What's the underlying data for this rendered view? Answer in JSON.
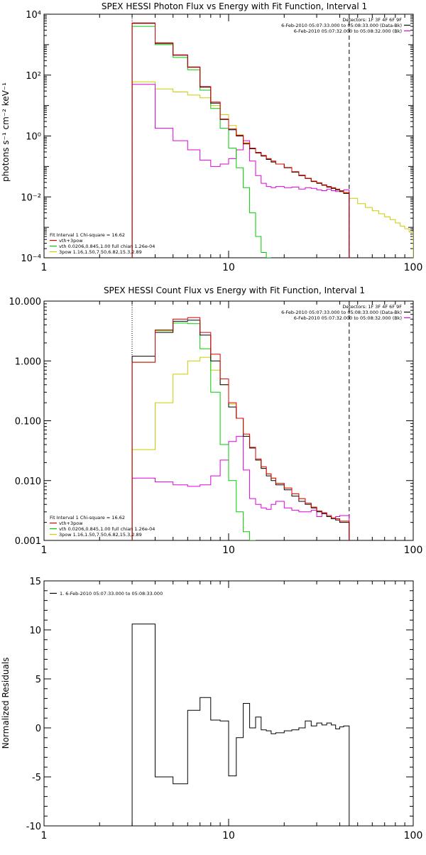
{
  "chart_data": [
    {
      "type": "line",
      "title": "SPEX HESSI Photon Flux vs Energy with Fit Function, Interval 1",
      "ylabel": "photons s⁻¹ cm⁻² keV⁻¹",
      "xlabel": "",
      "xscale": "log",
      "yscale": "log",
      "xlim": [
        1,
        100
      ],
      "ylim": [
        0.0001,
        10000
      ],
      "xticks": [
        {
          "v": 1,
          "label": "1"
        },
        {
          "v": 10,
          "label": "10"
        },
        {
          "v": 100,
          "label": "100"
        }
      ],
      "yticks": [
        {
          "v": 0.0001,
          "label": "10⁻⁴"
        },
        {
          "v": 0.01,
          "label": "10⁻²"
        },
        {
          "v": 1,
          "label": "10⁰"
        },
        {
          "v": 100,
          "label": "10²"
        },
        {
          "v": 10000,
          "label": "10⁴"
        }
      ],
      "vlines": [
        {
          "x": 3,
          "style": "dotted"
        },
        {
          "x": 45,
          "style": "dashed"
        }
      ],
      "legend_top_right": [
        {
          "text": "Detectors: 1F 3F 4F 6F 9F",
          "color": ""
        },
        {
          "text": "6-Feb-2010 05:07:33.000 to 05:08:33.000 (Data-Bk)",
          "color": "#000000"
        },
        {
          "text": "6-Feb-2010 05:07:32.000 to 05:08:32.000 (Bk)",
          "color": "#dd00dd"
        }
      ],
      "legend_bottom_left": [
        {
          "text": "Fit Interval  1    Chi-square = 16.62",
          "color": ""
        },
        {
          "text": "vth+3pow",
          "color": "#dd0000"
        },
        {
          "text": "vth 0.0206,0.845,1.00   full chian 1.26e-04",
          "color": "#00cc00"
        },
        {
          "text": "3pow 1.16,1.50,7.50,6.82,15.3,2.89",
          "color": "#cccc00"
        }
      ],
      "series": [
        {
          "color": "#000000",
          "edges": [
            3,
            4,
            5,
            6,
            7,
            8,
            9,
            10,
            11,
            12,
            13,
            14,
            15,
            16,
            17,
            18,
            20,
            22,
            24,
            26,
            28,
            30,
            32,
            34,
            36,
            38,
            40,
            42,
            45
          ],
          "values": [
            5000,
            1100,
            450,
            180,
            40,
            12,
            3.5,
            1.6,
            1.0,
            0.55,
            0.38,
            0.28,
            0.22,
            0.17,
            0.14,
            0.12,
            0.09,
            0.065,
            0.05,
            0.04,
            0.032,
            0.028,
            0.024,
            0.021,
            0.019,
            0.017,
            0.015,
            0.013
          ]
        },
        {
          "color": "#dd0000",
          "edges": [
            3,
            4,
            5,
            6,
            7,
            8,
            9,
            10,
            11,
            12,
            13,
            14,
            15,
            16,
            17,
            18,
            20,
            22,
            24,
            26,
            28,
            30,
            32,
            34,
            36,
            38,
            40,
            42,
            45
          ],
          "values": [
            5200,
            1150,
            460,
            185,
            42,
            13,
            3.6,
            1.7,
            1.05,
            0.57,
            0.4,
            0.29,
            0.23,
            0.18,
            0.15,
            0.12,
            0.092,
            0.067,
            0.052,
            0.041,
            0.033,
            0.029,
            0.025,
            0.022,
            0.02,
            0.018,
            0.016,
            0.014
          ]
        },
        {
          "color": "#00cc00",
          "edges": [
            3,
            4,
            5,
            6,
            7,
            8,
            9,
            10,
            11,
            12,
            13,
            14,
            15,
            16,
            17
          ],
          "values": [
            4000,
            1000,
            380,
            150,
            32,
            8,
            1.8,
            0.4,
            0.09,
            0.02,
            0.003,
            0.0005,
            0.00015,
            6e-05
          ]
        },
        {
          "color": "#cccc00",
          "edges": [
            3,
            4,
            5,
            6,
            7,
            8,
            9,
            10,
            11,
            12,
            13,
            14,
            15,
            16,
            17,
            18,
            20,
            22,
            24,
            26,
            28,
            30,
            32,
            34,
            36,
            38,
            40,
            42,
            45,
            50,
            55,
            60,
            65,
            70,
            75,
            80,
            85,
            90,
            95,
            100
          ],
          "values": [
            60,
            35,
            28,
            22,
            18,
            10,
            5,
            2.2,
            1.1,
            0.6,
            0.38,
            0.28,
            0.22,
            0.17,
            0.14,
            0.12,
            0.09,
            0.065,
            0.05,
            0.04,
            0.032,
            0.028,
            0.024,
            0.021,
            0.019,
            0.017,
            0.015,
            0.013,
            0.009,
            0.006,
            0.0045,
            0.0035,
            0.0028,
            0.0022,
            0.0018,
            0.0014,
            0.0011,
            0.0009,
            0.0007
          ]
        },
        {
          "color": "#dd00dd",
          "edges": [
            3,
            4,
            5,
            6,
            7,
            8,
            9,
            10,
            11,
            12,
            13,
            14,
            15,
            16,
            17,
            18,
            20,
            22,
            24,
            26,
            28,
            30,
            32,
            34,
            36,
            38,
            40,
            42,
            45
          ],
          "values": [
            50,
            1.8,
            0.7,
            0.35,
            0.16,
            0.1,
            0.12,
            0.18,
            0.35,
            0.7,
            0.15,
            0.05,
            0.028,
            0.022,
            0.02,
            0.022,
            0.02,
            0.021,
            0.018,
            0.02,
            0.019,
            0.017,
            0.016,
            0.018,
            0.016,
            0.015,
            0.016,
            0.017
          ]
        }
      ]
    },
    {
      "type": "line",
      "title": "SPEX HESSI Count Flux vs Energy with Fit Function, Interval 1",
      "ylabel": "",
      "xlabel": "",
      "xscale": "log",
      "yscale": "log",
      "xlim": [
        1,
        100
      ],
      "ylim": [
        0.001,
        10
      ],
      "xticks": [
        {
          "v": 1,
          "label": "1"
        },
        {
          "v": 10,
          "label": "10"
        },
        {
          "v": 100,
          "label": "100"
        }
      ],
      "yticks": [
        {
          "v": 0.001,
          "label": "0.001"
        },
        {
          "v": 0.01,
          "label": "0.010"
        },
        {
          "v": 0.1,
          "label": "0.100"
        },
        {
          "v": 1,
          "label": "1.000"
        },
        {
          "v": 10,
          "label": "10.000"
        }
      ],
      "vlines": [
        {
          "x": 3,
          "style": "dotted"
        },
        {
          "x": 45,
          "style": "dashed"
        }
      ],
      "legend_top_right": [
        {
          "text": "Detectors: 1F 3F 4F 6F 9F",
          "color": ""
        },
        {
          "text": "6-Feb-2010 05:07:33.000 to 05:08:33.000 (Data-Bk)",
          "color": "#000000"
        },
        {
          "text": "6-Feb-2010 05:07:32.000 to 05:08:32.000 (Bk)",
          "color": "#dd00dd"
        }
      ],
      "legend_bottom_left": [
        {
          "text": "Fit Interval  1    Chi-square = 16.62",
          "color": ""
        },
        {
          "text": "vth+3pow",
          "color": "#dd0000"
        },
        {
          "text": "vth 0.0206,0.845,1.00   full chian 1.26e-04",
          "color": "#00cc00"
        },
        {
          "text": "3pow 1.16,1.50,7.50,6.82,15.3,2.89",
          "color": "#cccc00"
        }
      ],
      "series": [
        {
          "color": "#000000",
          "edges": [
            3,
            4,
            5,
            6,
            7,
            8,
            9,
            10,
            11,
            12,
            13,
            14,
            15,
            16,
            17,
            18,
            20,
            22,
            24,
            26,
            28,
            30,
            32,
            34,
            36,
            38,
            40,
            42,
            45
          ],
          "values": [
            1.2,
            3.0,
            4.6,
            4.8,
            2.7,
            1.0,
            0.4,
            0.17,
            0.11,
            0.055,
            0.035,
            0.022,
            0.016,
            0.012,
            0.01,
            0.0085,
            0.007,
            0.0055,
            0.0045,
            0.004,
            0.0035,
            0.003,
            0.0028,
            0.0025,
            0.0023,
            0.0022,
            0.002,
            0.002
          ]
        },
        {
          "color": "#dd0000",
          "edges": [
            3,
            4,
            5,
            6,
            7,
            8,
            9,
            10,
            11,
            12,
            13,
            14,
            15,
            16,
            17,
            18,
            20,
            22,
            24,
            26,
            28,
            30,
            32,
            34,
            36,
            38,
            40,
            42,
            45
          ],
          "values": [
            0.95,
            3.3,
            5.0,
            5.3,
            3.0,
            1.3,
            0.5,
            0.2,
            0.11,
            0.06,
            0.036,
            0.023,
            0.017,
            0.013,
            0.011,
            0.009,
            0.0075,
            0.006,
            0.005,
            0.0042,
            0.0036,
            0.0031,
            0.0029,
            0.0026,
            0.0024,
            0.0023,
            0.0021,
            0.0021
          ]
        },
        {
          "color": "#00cc00",
          "edges": [
            3,
            4,
            5,
            6,
            7,
            8,
            9,
            10,
            11,
            12,
            13,
            14
          ],
          "values": [
            0.95,
            3.2,
            4.3,
            4.2,
            1.6,
            0.3,
            0.04,
            0.01,
            0.003,
            0.0014,
            0.0008
          ]
        },
        {
          "color": "#cccc00",
          "edges": [
            3,
            4,
            5,
            6,
            7,
            8,
            9,
            10,
            11,
            12,
            13,
            14,
            15,
            16,
            17,
            18,
            20,
            22,
            24,
            26,
            28,
            30,
            32,
            34,
            36,
            38,
            40,
            42,
            45
          ],
          "values": [
            0.033,
            0.2,
            0.6,
            1.0,
            1.15,
            0.7,
            0.4,
            0.19,
            0.11,
            0.055,
            0.035,
            0.022,
            0.016,
            0.013,
            0.011,
            0.009,
            0.0075,
            0.006,
            0.005,
            0.0042,
            0.0036,
            0.0031,
            0.0029,
            0.0026,
            0.0024,
            0.0023,
            0.0021,
            0.0021
          ]
        },
        {
          "color": "#dd00dd",
          "edges": [
            3,
            4,
            5,
            6,
            7,
            8,
            9,
            10,
            11,
            12,
            13,
            14,
            15,
            16,
            17,
            18,
            20,
            22,
            24,
            26,
            28,
            30,
            32,
            34,
            36,
            38,
            40,
            42,
            45
          ],
          "values": [
            0.011,
            0.0095,
            0.0085,
            0.008,
            0.0085,
            0.012,
            0.022,
            0.045,
            0.055,
            0.015,
            0.005,
            0.004,
            0.0035,
            0.0033,
            0.004,
            0.0045,
            0.0035,
            0.0032,
            0.003,
            0.003,
            0.0032,
            0.0025,
            0.0028,
            0.0026,
            0.0024,
            0.0025,
            0.0026,
            0.0026
          ]
        }
      ]
    },
    {
      "type": "line",
      "title": "",
      "ylabel": "Normalized Residuals",
      "xlabel": "",
      "xscale": "log",
      "yscale": "linear",
      "xlim": [
        1,
        100
      ],
      "ylim": [
        -10,
        15
      ],
      "xticks": [
        {
          "v": 1,
          "label": "1"
        },
        {
          "v": 10,
          "label": "10"
        },
        {
          "v": 100,
          "label": "100"
        }
      ],
      "yticks": [
        {
          "v": -10,
          "label": "-10"
        },
        {
          "v": -5,
          "label": "-5"
        },
        {
          "v": 0,
          "label": "0"
        },
        {
          "v": 5,
          "label": "5"
        },
        {
          "v": 10,
          "label": "10"
        },
        {
          "v": 15,
          "label": "15"
        }
      ],
      "vlines": [],
      "legend_top_left": [
        {
          "text": "1.  6-Feb-2010 05:07:33.000 to 05:08:33.000",
          "color": "#000000"
        }
      ],
      "series": [
        {
          "color": "#000000",
          "edges": [
            3,
            4,
            5,
            6,
            7,
            8,
            9,
            10,
            11,
            12,
            13,
            14,
            15,
            16,
            17,
            18,
            20,
            22,
            24,
            26,
            28,
            30,
            32,
            34,
            36,
            38,
            40,
            42,
            45
          ],
          "values": [
            10.6,
            -5.0,
            -5.7,
            1.8,
            3.1,
            0.8,
            0.7,
            -4.9,
            -1.0,
            2.5,
            0.0,
            1.1,
            -0.2,
            -0.3,
            -0.6,
            -0.5,
            -0.3,
            -0.2,
            0.0,
            0.7,
            0.2,
            0.5,
            0.3,
            0.5,
            0.3,
            -0.1,
            0.1,
            0.2
          ],
          "baseline": -10
        }
      ]
    }
  ]
}
